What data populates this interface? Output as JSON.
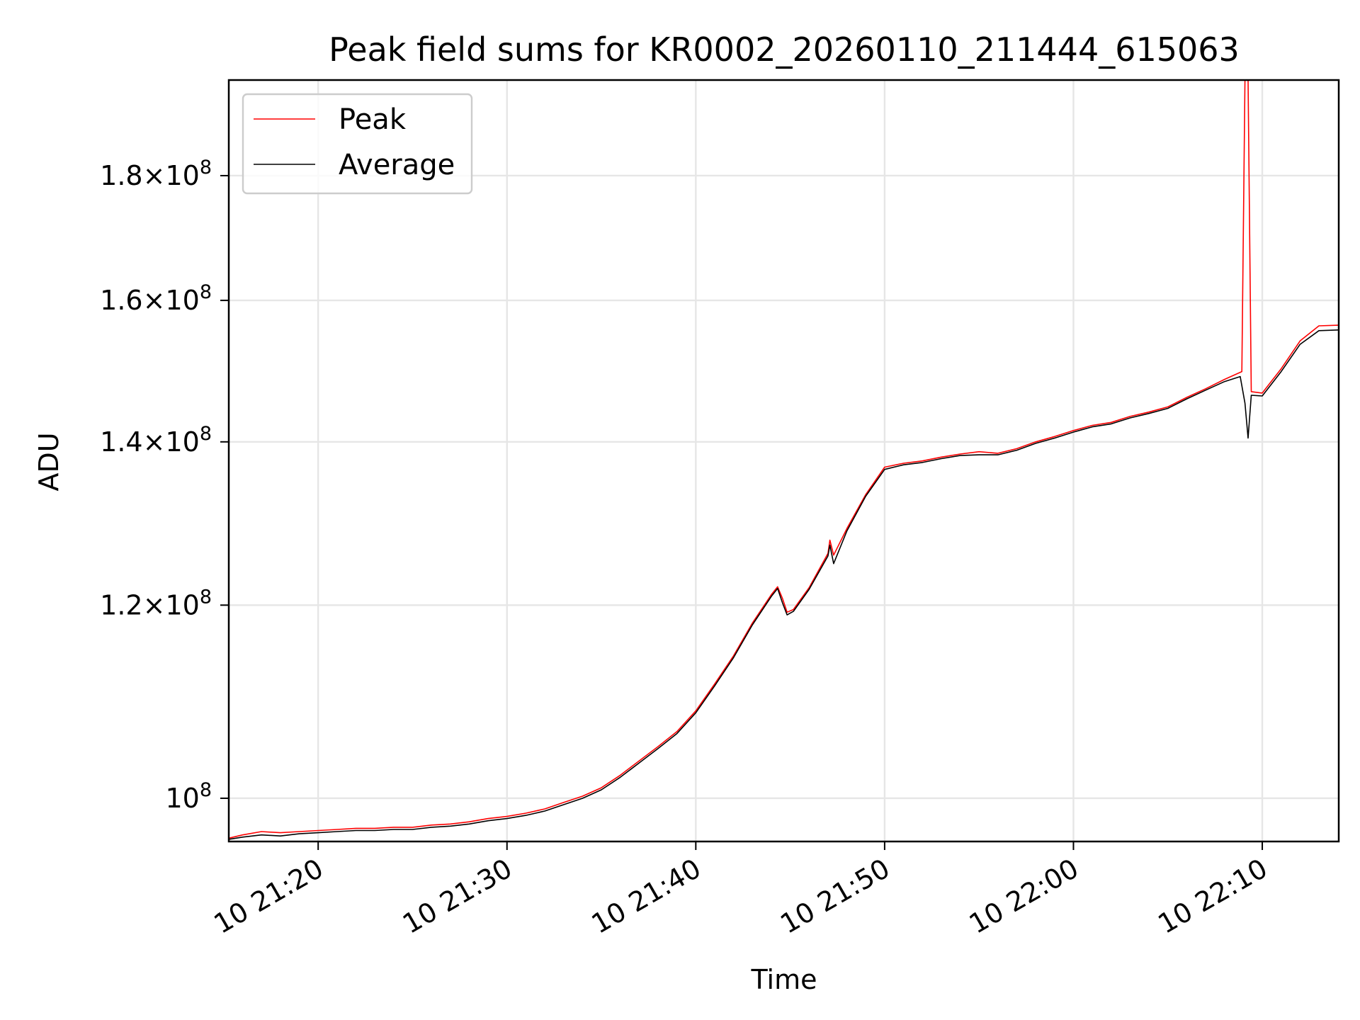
{
  "chart_data": {
    "type": "line",
    "title": "Peak field sums for KR0002_20260110_211444_615063",
    "xlabel": "Time",
    "ylabel": "ADU",
    "y_scale": "log",
    "ylim": [
      96000000,
      197000000
    ],
    "xlim": [
      "21:15:16",
      "22:14:03"
    ],
    "grid": true,
    "legend_position": "top-left",
    "x_ticks": [
      {
        "time": "21:20",
        "label": "10 21:20"
      },
      {
        "time": "21:30",
        "label": "10 21:30"
      },
      {
        "time": "21:40",
        "label": "10 21:40"
      },
      {
        "time": "21:50",
        "label": "10 21:50"
      },
      {
        "time": "22:00",
        "label": "10 22:00"
      },
      {
        "time": "22:10",
        "label": "10 22:10"
      }
    ],
    "y_ticks": [
      {
        "value": 100000000,
        "mantissa": "10",
        "times": "",
        "exponent": "8"
      },
      {
        "value": 120000000,
        "mantissa": "1.2",
        "times": "×10",
        "exponent": "8"
      },
      {
        "value": 140000000,
        "mantissa": "1.4",
        "times": "×10",
        "exponent": "8"
      },
      {
        "value": 160000000,
        "mantissa": "1.6",
        "times": "×10",
        "exponent": "8"
      },
      {
        "value": 180000000,
        "mantissa": "1.8",
        "times": "×10",
        "exponent": "8"
      }
    ],
    "series": [
      {
        "name": "Peak",
        "color": "#ff0000",
        "points": [
          [
            "21:15:16",
            96.3
          ],
          [
            "21:16:00",
            96.6
          ],
          [
            "21:17:00",
            96.9
          ],
          [
            "21:18:00",
            96.8
          ],
          [
            "21:19:00",
            96.9
          ],
          [
            "21:20:00",
            97.0
          ],
          [
            "21:21:00",
            97.1
          ],
          [
            "21:22:00",
            97.2
          ],
          [
            "21:23:00",
            97.2
          ],
          [
            "21:24:00",
            97.3
          ],
          [
            "21:25:00",
            97.3
          ],
          [
            "21:26:00",
            97.5
          ],
          [
            "21:27:00",
            97.6
          ],
          [
            "21:28:00",
            97.8
          ],
          [
            "21:29:00",
            98.1
          ],
          [
            "21:30:00",
            98.3
          ],
          [
            "21:31:00",
            98.6
          ],
          [
            "21:32:00",
            99.0
          ],
          [
            "21:33:00",
            99.6
          ],
          [
            "21:34:00",
            100.2
          ],
          [
            "21:35:00",
            101.0
          ],
          [
            "21:36:00",
            102.2
          ],
          [
            "21:37:00",
            103.6
          ],
          [
            "21:38:00",
            105.0
          ],
          [
            "21:39:00",
            106.5
          ],
          [
            "21:40:00",
            108.6
          ],
          [
            "21:41:00",
            111.4
          ],
          [
            "21:42:00",
            114.4
          ],
          [
            "21:43:00",
            118.0
          ],
          [
            "21:44:00",
            121.2
          ],
          [
            "21:44:20",
            122.1
          ],
          [
            "21:44:35",
            120.8
          ],
          [
            "21:44:50",
            119.2
          ],
          [
            "21:45:10",
            119.5
          ],
          [
            "21:46:00",
            122.0
          ],
          [
            "21:47:00",
            126.0
          ],
          [
            "21:47:06",
            127.6
          ],
          [
            "21:47:18",
            125.8
          ],
          [
            "21:48:00",
            129.0
          ],
          [
            "21:49:00",
            133.2
          ],
          [
            "21:50:00",
            136.7
          ],
          [
            "21:51:00",
            137.2
          ],
          [
            "21:52:00",
            137.5
          ],
          [
            "21:53:00",
            138.0
          ],
          [
            "21:54:00",
            138.4
          ],
          [
            "21:55:00",
            138.7
          ],
          [
            "21:56:00",
            138.5
          ],
          [
            "21:57:00",
            139.1
          ],
          [
            "21:58:00",
            140.0
          ],
          [
            "21:59:00",
            140.7
          ],
          [
            "22:00:00",
            141.5
          ],
          [
            "22:01:00",
            142.2
          ],
          [
            "22:02:00",
            142.6
          ],
          [
            "22:03:00",
            143.4
          ],
          [
            "22:04:00",
            144.0
          ],
          [
            "22:05:00",
            144.7
          ],
          [
            "22:06:00",
            146.0
          ],
          [
            "22:07:00",
            147.2
          ],
          [
            "22:08:00",
            148.5
          ],
          [
            "22:08:55",
            149.6
          ],
          [
            "22:09:05",
            197.0
          ],
          [
            "22:09:15",
            197.0
          ],
          [
            "22:09:25",
            146.8
          ],
          [
            "22:10:00",
            146.6
          ],
          [
            "22:11:00",
            150.0
          ],
          [
            "22:12:00",
            154.0
          ],
          [
            "22:13:00",
            156.2
          ],
          [
            "22:14:03",
            156.3
          ]
        ]
      },
      {
        "name": "Average",
        "color": "#000000",
        "points": [
          [
            "21:15:16",
            96.2
          ],
          [
            "21:16:00",
            96.4
          ],
          [
            "21:17:00",
            96.6
          ],
          [
            "21:18:00",
            96.5
          ],
          [
            "21:19:00",
            96.7
          ],
          [
            "21:20:00",
            96.8
          ],
          [
            "21:21:00",
            96.9
          ],
          [
            "21:22:00",
            97.0
          ],
          [
            "21:23:00",
            97.0
          ],
          [
            "21:24:00",
            97.1
          ],
          [
            "21:25:00",
            97.1
          ],
          [
            "21:26:00",
            97.3
          ],
          [
            "21:27:00",
            97.4
          ],
          [
            "21:28:00",
            97.6
          ],
          [
            "21:29:00",
            97.9
          ],
          [
            "21:30:00",
            98.1
          ],
          [
            "21:31:00",
            98.4
          ],
          [
            "21:32:00",
            98.8
          ],
          [
            "21:33:00",
            99.4
          ],
          [
            "21:34:00",
            100.0
          ],
          [
            "21:35:00",
            100.8
          ],
          [
            "21:36:00",
            102.0
          ],
          [
            "21:37:00",
            103.4
          ],
          [
            "21:38:00",
            104.8
          ],
          [
            "21:39:00",
            106.3
          ],
          [
            "21:40:00",
            108.4
          ],
          [
            "21:41:00",
            111.2
          ],
          [
            "21:42:00",
            114.2
          ],
          [
            "21:43:00",
            117.8
          ],
          [
            "21:44:00",
            121.0
          ],
          [
            "21:44:20",
            121.9
          ],
          [
            "21:44:35",
            120.3
          ],
          [
            "21:44:50",
            118.9
          ],
          [
            "21:45:10",
            119.3
          ],
          [
            "21:46:00",
            121.8
          ],
          [
            "21:47:00",
            125.7
          ],
          [
            "21:47:06",
            127.0
          ],
          [
            "21:47:18",
            124.8
          ],
          [
            "21:48:00",
            128.7
          ],
          [
            "21:49:00",
            133.0
          ],
          [
            "21:50:00",
            136.4
          ],
          [
            "21:51:00",
            137.0
          ],
          [
            "21:52:00",
            137.3
          ],
          [
            "21:53:00",
            137.8
          ],
          [
            "21:54:00",
            138.2
          ],
          [
            "21:55:00",
            138.3
          ],
          [
            "21:56:00",
            138.3
          ],
          [
            "21:57:00",
            138.9
          ],
          [
            "21:58:00",
            139.8
          ],
          [
            "21:59:00",
            140.5
          ],
          [
            "22:00:00",
            141.3
          ],
          [
            "22:01:00",
            142.0
          ],
          [
            "22:02:00",
            142.4
          ],
          [
            "22:03:00",
            143.2
          ],
          [
            "22:04:00",
            143.8
          ],
          [
            "22:05:00",
            144.5
          ],
          [
            "22:06:00",
            145.8
          ],
          [
            "22:07:00",
            147.0
          ],
          [
            "22:08:00",
            148.2
          ],
          [
            "22:08:50",
            148.9
          ],
          [
            "22:09:05",
            145.2
          ],
          [
            "22:09:15",
            140.5
          ],
          [
            "22:09:25",
            146.3
          ],
          [
            "22:10:00",
            146.2
          ],
          [
            "22:11:00",
            149.6
          ],
          [
            "22:12:00",
            153.5
          ],
          [
            "22:13:00",
            155.5
          ],
          [
            "22:14:03",
            155.6
          ]
        ]
      }
    ],
    "y_values_unit": "millions of ADU"
  }
}
